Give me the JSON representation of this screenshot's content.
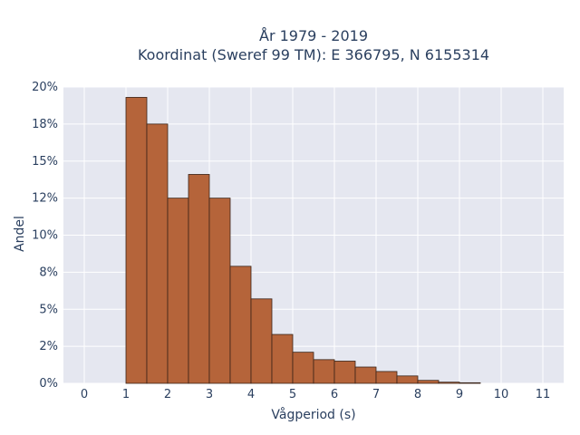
{
  "chart_data": {
    "type": "bar",
    "title_line1": "År 1979 - 2019",
    "title_line2": "Koordinat (Sweref 99 TM): E 366795, N 6155314",
    "xlabel": "Vågperiod (s)",
    "ylabel": "Andel",
    "xlim": [
      -0.5,
      11.5
    ],
    "ylim": [
      0,
      0.2
    ],
    "x_ticks": [
      0,
      1,
      2,
      3,
      4,
      5,
      6,
      7,
      8,
      9,
      10,
      11
    ],
    "y_ticks": [
      0,
      0.025,
      0.05,
      0.075,
      0.1,
      0.125,
      0.15,
      0.175,
      0.2
    ],
    "y_tick_labels": [
      "0%",
      "2%",
      "5%",
      "8%",
      "10%",
      "12%",
      "15%",
      "18%",
      "20%"
    ],
    "bin_width": 0.5,
    "bins": [
      {
        "x0": 1.0,
        "value": 0.193
      },
      {
        "x0": 1.5,
        "value": 0.175
      },
      {
        "x0": 2.0,
        "value": 0.125
      },
      {
        "x0": 2.5,
        "value": 0.141
      },
      {
        "x0": 3.0,
        "value": 0.125
      },
      {
        "x0": 3.5,
        "value": 0.079
      },
      {
        "x0": 4.0,
        "value": 0.057
      },
      {
        "x0": 4.5,
        "value": 0.033
      },
      {
        "x0": 5.0,
        "value": 0.021
      },
      {
        "x0": 5.5,
        "value": 0.016
      },
      {
        "x0": 6.0,
        "value": 0.015
      },
      {
        "x0": 6.5,
        "value": 0.011
      },
      {
        "x0": 7.0,
        "value": 0.008
      },
      {
        "x0": 7.5,
        "value": 0.005
      },
      {
        "x0": 8.0,
        "value": 0.002
      },
      {
        "x0": 8.5,
        "value": 0.0008
      },
      {
        "x0": 9.0,
        "value": 0.0004
      }
    ],
    "grid": true,
    "colors": {
      "bar_fill": "#b5643a",
      "bar_edge": "#3a2418",
      "plot_bg": "#e5e7f0",
      "grid": "#ffffff",
      "text": "#2a3f5f"
    }
  }
}
